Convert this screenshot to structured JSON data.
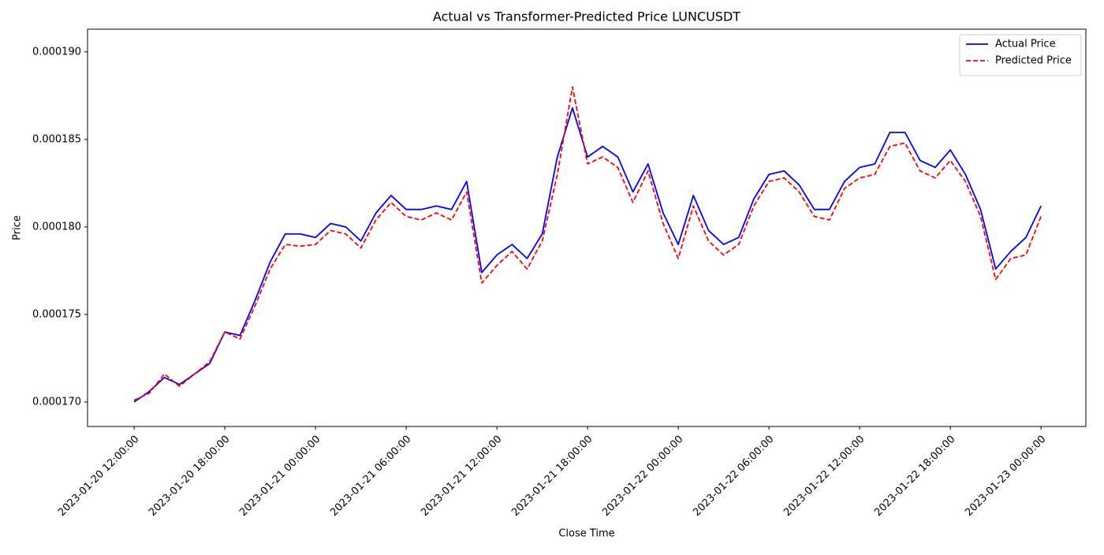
{
  "chart_data": {
    "type": "line",
    "title": "Actual vs Transformer-Predicted Price LUNCUSDT",
    "xlabel": "Close Time",
    "ylabel": "Price",
    "x": [
      "2023-01-20 12:00:00",
      "2023-01-20 13:00:00",
      "2023-01-20 14:00:00",
      "2023-01-20 15:00:00",
      "2023-01-20 16:00:00",
      "2023-01-20 17:00:00",
      "2023-01-20 18:00:00",
      "2023-01-20 19:00:00",
      "2023-01-20 20:00:00",
      "2023-01-20 21:00:00",
      "2023-01-20 22:00:00",
      "2023-01-20 23:00:00",
      "2023-01-21 00:00:00",
      "2023-01-21 01:00:00",
      "2023-01-21 02:00:00",
      "2023-01-21 03:00:00",
      "2023-01-21 04:00:00",
      "2023-01-21 05:00:00",
      "2023-01-21 06:00:00",
      "2023-01-21 07:00:00",
      "2023-01-21 08:00:00",
      "2023-01-21 09:00:00",
      "2023-01-21 10:00:00",
      "2023-01-21 11:00:00",
      "2023-01-21 12:00:00",
      "2023-01-21 13:00:00",
      "2023-01-21 14:00:00",
      "2023-01-21 15:00:00",
      "2023-01-21 16:00:00",
      "2023-01-21 17:00:00",
      "2023-01-21 18:00:00",
      "2023-01-21 19:00:00",
      "2023-01-21 20:00:00",
      "2023-01-21 21:00:00",
      "2023-01-21 22:00:00",
      "2023-01-21 23:00:00",
      "2023-01-22 00:00:00",
      "2023-01-22 01:00:00",
      "2023-01-22 02:00:00",
      "2023-01-22 03:00:00",
      "2023-01-22 04:00:00",
      "2023-01-22 05:00:00",
      "2023-01-22 06:00:00",
      "2023-01-22 07:00:00",
      "2023-01-22 08:00:00",
      "2023-01-22 09:00:00",
      "2023-01-22 10:00:00",
      "2023-01-22 11:00:00",
      "2023-01-22 12:00:00",
      "2023-01-22 13:00:00",
      "2023-01-22 14:00:00",
      "2023-01-22 15:00:00",
      "2023-01-22 16:00:00",
      "2023-01-22 17:00:00",
      "2023-01-22 18:00:00",
      "2023-01-22 19:00:00",
      "2023-01-22 20:00:00",
      "2023-01-22 21:00:00",
      "2023-01-22 22:00:00",
      "2023-01-22 23:00:00",
      "2023-01-23 00:00:00"
    ],
    "series": [
      {
        "name": "Actual Price",
        "color": "#0000ff",
        "linestyle": "solid",
        "values": [
          0.00017,
          0.0001706,
          0.0001714,
          0.000171,
          0.0001716,
          0.0001722,
          0.000174,
          0.0001738,
          0.0001758,
          0.000178,
          0.0001796,
          0.0001796,
          0.0001794,
          0.0001802,
          0.00018,
          0.0001792,
          0.0001808,
          0.0001818,
          0.000181,
          0.000181,
          0.0001812,
          0.000181,
          0.0001826,
          0.0001774,
          0.0001784,
          0.000179,
          0.0001782,
          0.0001796,
          0.000184,
          0.0001868,
          0.000184,
          0.0001846,
          0.000184,
          0.000182,
          0.0001836,
          0.0001808,
          0.000179,
          0.0001818,
          0.0001798,
          0.000179,
          0.0001794,
          0.0001816,
          0.000183,
          0.0001832,
          0.0001824,
          0.000181,
          0.000181,
          0.0001826,
          0.0001834,
          0.0001836,
          0.0001854,
          0.0001854,
          0.0001838,
          0.0001834,
          0.0001844,
          0.000183,
          0.000181,
          0.0001776,
          0.0001786,
          0.0001794,
          0.0001812
        ]
      },
      {
        "name": "Predicted Price",
        "color": "#ff0000",
        "linestyle": "dashed",
        "values": [
          0.0001701,
          0.0001705,
          0.0001716,
          0.0001709,
          0.0001716,
          0.0001723,
          0.000174,
          0.0001736,
          0.0001755,
          0.0001776,
          0.000179,
          0.0001789,
          0.000179,
          0.0001798,
          0.0001796,
          0.0001788,
          0.0001804,
          0.0001814,
          0.0001806,
          0.0001804,
          0.0001808,
          0.0001804,
          0.000182,
          0.0001768,
          0.0001778,
          0.0001786,
          0.0001776,
          0.0001792,
          0.000183,
          0.000188,
          0.0001836,
          0.000184,
          0.0001834,
          0.0001814,
          0.0001832,
          0.0001802,
          0.0001782,
          0.0001812,
          0.0001792,
          0.0001784,
          0.000179,
          0.0001812,
          0.0001826,
          0.0001828,
          0.000182,
          0.0001806,
          0.0001804,
          0.0001822,
          0.0001828,
          0.000183,
          0.0001846,
          0.0001848,
          0.0001832,
          0.0001828,
          0.0001838,
          0.0001826,
          0.0001806,
          0.000177,
          0.0001782,
          0.0001784,
          0.0001806
        ]
      }
    ],
    "xlim": [
      "2023-01-20 08:55:00",
      "2023-01-23 02:58:00"
    ],
    "xticks": [
      "2023-01-20 12:00:00",
      "2023-01-20 18:00:00",
      "2023-01-21 00:00:00",
      "2023-01-21 06:00:00",
      "2023-01-21 12:00:00",
      "2023-01-21 18:00:00",
      "2023-01-22 00:00:00",
      "2023-01-22 06:00:00",
      "2023-01-22 12:00:00",
      "2023-01-22 18:00:00",
      "2023-01-23 00:00:00"
    ],
    "ylim": [
      0.0001686,
      0.0001913
    ],
    "yticks": [
      {
        "value": 0.00017,
        "label": "0.000170"
      },
      {
        "value": 0.000175,
        "label": "0.000175"
      },
      {
        "value": 0.00018,
        "label": "0.000180"
      },
      {
        "value": 0.000185,
        "label": "0.000185"
      },
      {
        "value": 0.00019,
        "label": "0.000190"
      }
    ],
    "grid": false,
    "legend": "upper right"
  }
}
